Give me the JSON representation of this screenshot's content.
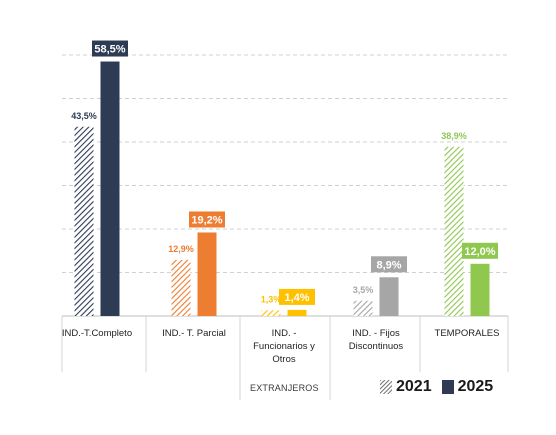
{
  "chart_data": {
    "type": "bar",
    "categories": [
      "IND.-T.Completo",
      "IND.- T. Parcial",
      "IND. -\nFuncionarios y\nOtros",
      "IND. - Fijos\nDiscontinuos",
      "TEMPORALES"
    ],
    "series": [
      {
        "name": "2021",
        "values": [
          43.5,
          12.9,
          1.3,
          3.5,
          38.9
        ],
        "value_labels": [
          "43,5%",
          "12,9%",
          "1,3%",
          "3,5%",
          "38,9%"
        ],
        "pattern": "hatched"
      },
      {
        "name": "2025",
        "values": [
          58.5,
          19.2,
          1.4,
          8.9,
          12.0
        ],
        "value_labels": [
          "58,5%",
          "19,2%",
          "1,4%",
          "8,9%",
          "12,0%"
        ],
        "pattern": "solid"
      }
    ],
    "category_colors": [
      "#2d3b55",
      "#ed7d31",
      "#ffc000",
      "#a6a6a6",
      "#8fc74f"
    ],
    "ylim": [
      0,
      60
    ],
    "gridlines": [
      10,
      20,
      30,
      40,
      50,
      60
    ],
    "grid": "horizontal-dashed",
    "legend_position": "bottom-right",
    "group_label": "EXTRANJEROS"
  }
}
